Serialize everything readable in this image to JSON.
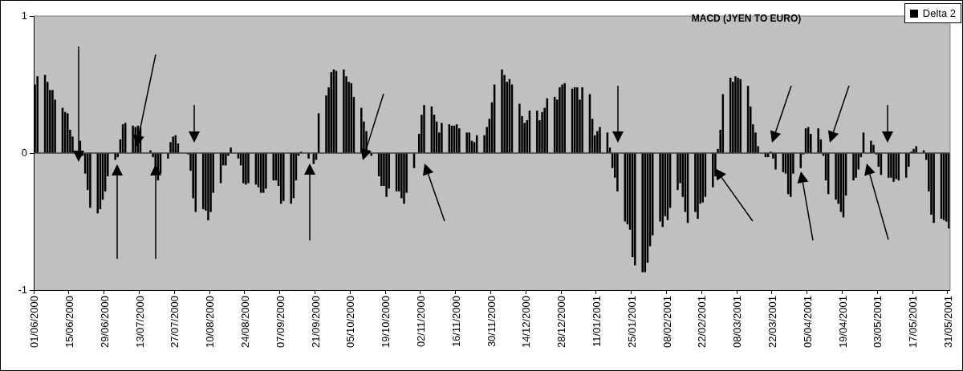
{
  "chart_data": {
    "type": "bar",
    "title": "MACD (JYEN TO EURO)",
    "categories": [
      "01/06/2000",
      null,
      null,
      null,
      null,
      null,
      null,
      null,
      null,
      null,
      null,
      null,
      null,
      null,
      "15/06/2000",
      null,
      null,
      null,
      null,
      null,
      null,
      null,
      null,
      null,
      null,
      null,
      null,
      null,
      "29/06/2000",
      null,
      null,
      null,
      null,
      null,
      null,
      null,
      null,
      null,
      null,
      null,
      null,
      null,
      "13/07/2000",
      null,
      null,
      null,
      null,
      null,
      null,
      null,
      null,
      null,
      null,
      null,
      null,
      null,
      "27/07/2000",
      null,
      null,
      null,
      null,
      null,
      null,
      null,
      null,
      null,
      null,
      null,
      null,
      null,
      "10/08/2000",
      null,
      null,
      null,
      null,
      null,
      null,
      null,
      null,
      null,
      null,
      null,
      null,
      null,
      "24/08/2000",
      null,
      null,
      null,
      null,
      null,
      null,
      null,
      null,
      null,
      null,
      null,
      null,
      null,
      "07/09/2000",
      null,
      null,
      null,
      null,
      null,
      null,
      null,
      null,
      null,
      null,
      null,
      null,
      null,
      "21/09/2000",
      null,
      null,
      null,
      null,
      null,
      null,
      null,
      null,
      null,
      null,
      null,
      null,
      null,
      "05/10/2000",
      null,
      null,
      null,
      null,
      null,
      null,
      null,
      null,
      null,
      null,
      null,
      null,
      null,
      "19/10/2000",
      null,
      null,
      null,
      null,
      null,
      null,
      null,
      null,
      null,
      null,
      null,
      null,
      null,
      "02/11/2000",
      null,
      null,
      null,
      null,
      null,
      null,
      null,
      null,
      null,
      null,
      null,
      null,
      null,
      "16/11/2000",
      null,
      null,
      null,
      null,
      null,
      null,
      null,
      null,
      null,
      null,
      null,
      null,
      null,
      "30/11/2000",
      null,
      null,
      null,
      null,
      null,
      null,
      null,
      null,
      null,
      null,
      null,
      null,
      null,
      "14/12/2000",
      null,
      null,
      null,
      null,
      null,
      null,
      null,
      null,
      null,
      null,
      null,
      null,
      null,
      "28/12/2000",
      null,
      null,
      null,
      null,
      null,
      null,
      null,
      null,
      null,
      null,
      null,
      null,
      null,
      "11/01/2001",
      null,
      null,
      null,
      null,
      null,
      null,
      null,
      null,
      null,
      null,
      null,
      null,
      null,
      "25/01/2001",
      null,
      null,
      null,
      null,
      null,
      null,
      null,
      null,
      null,
      null,
      null,
      null,
      null,
      "08/02/2001",
      null,
      null,
      null,
      null,
      null,
      null,
      null,
      null,
      null,
      null,
      null,
      null,
      null,
      "22/02/2001",
      null,
      null,
      null,
      null,
      null,
      null,
      null,
      null,
      null,
      null,
      null,
      null,
      null,
      "08/03/2001",
      null,
      null,
      null,
      null,
      null,
      null,
      null,
      null,
      null,
      null,
      null,
      null,
      null,
      "22/03/2001",
      null,
      null,
      null,
      null,
      null,
      null,
      null,
      null,
      null,
      null,
      null,
      null,
      null,
      "05/04/2001",
      null,
      null,
      null,
      null,
      null,
      null,
      null,
      null,
      null,
      null,
      null,
      null,
      null,
      "19/04/2001",
      null,
      null,
      null,
      null,
      null,
      null,
      null,
      null,
      null,
      null,
      null,
      null,
      null,
      "03/05/2001",
      null,
      null,
      null,
      null,
      null,
      null,
      null,
      null,
      null,
      null,
      null,
      null,
      null,
      "17/05/2001",
      null,
      null,
      null,
      null,
      null,
      null,
      null,
      null,
      null,
      null,
      null,
      null,
      null,
      "31/05/2001"
    ],
    "series": [
      {
        "name": "Delta 2",
        "color": "#000000",
        "values": [
          0.5,
          0.56,
          null,
          null,
          0.57,
          0.52,
          0.46,
          0.46,
          0.39,
          null,
          null,
          0.33,
          0.3,
          0.29,
          0.17,
          0.12,
          null,
          null,
          0.09,
          -0.02,
          -0.15,
          -0.27,
          -0.4,
          null,
          null,
          -0.44,
          -0.41,
          -0.34,
          -0.28,
          -0.17,
          null,
          null,
          -0.05,
          -0.03,
          0.1,
          0.21,
          0.22,
          null,
          null,
          0.2,
          0.19,
          0.2,
          0.19,
          0.0,
          null,
          null,
          0.02,
          -0.03,
          -0.12,
          -0.2,
          -0.15,
          null,
          null,
          -0.04,
          0.08,
          0.12,
          0.13,
          0.07,
          null,
          null,
          0.0,
          -0.01,
          -0.13,
          -0.33,
          -0.43,
          null,
          null,
          -0.41,
          -0.42,
          -0.49,
          -0.43,
          -0.29,
          null,
          null,
          -0.22,
          -0.09,
          -0.09,
          -0.02,
          0.04,
          null,
          null,
          -0.04,
          -0.09,
          -0.22,
          -0.23,
          -0.22,
          null,
          null,
          -0.23,
          -0.25,
          -0.29,
          -0.29,
          -0.26,
          null,
          null,
          -0.2,
          -0.2,
          -0.24,
          -0.37,
          -0.35,
          null,
          null,
          -0.37,
          -0.33,
          -0.2,
          -0.02,
          0.01,
          null,
          null,
          -0.04,
          0.0,
          -0.08,
          -0.05,
          0.29,
          null,
          null,
          0.42,
          0.48,
          0.59,
          0.61,
          0.6,
          null,
          null,
          0.61,
          0.56,
          0.52,
          0.51,
          0.41,
          null,
          null,
          0.33,
          0.23,
          0.16,
          0.02,
          -0.02,
          null,
          null,
          -0.17,
          -0.24,
          -0.24,
          -0.32,
          -0.26,
          null,
          null,
          -0.28,
          -0.28,
          -0.33,
          -0.37,
          -0.29,
          null,
          null,
          -0.11,
          0.0,
          0.14,
          0.28,
          0.35,
          null,
          null,
          0.34,
          0.28,
          0.23,
          0.15,
          0.22,
          null,
          null,
          0.21,
          0.2,
          0.2,
          0.21,
          0.18,
          null,
          null,
          0.15,
          0.15,
          0.09,
          0.08,
          0.13,
          null,
          null,
          0.13,
          0.19,
          0.25,
          0.37,
          0.5,
          null,
          null,
          0.61,
          0.57,
          0.52,
          0.54,
          0.5,
          null,
          null,
          0.36,
          0.27,
          0.22,
          0.24,
          0.31,
          null,
          null,
          0.31,
          0.24,
          0.3,
          0.33,
          0.4,
          null,
          null,
          0.41,
          0.39,
          0.48,
          0.5,
          0.51,
          null,
          null,
          0.47,
          0.48,
          0.48,
          0.39,
          0.48,
          null,
          null,
          0.43,
          0.25,
          0.13,
          0.16,
          0.19,
          null,
          null,
          0.15,
          0.04,
          -0.11,
          -0.18,
          -0.28,
          null,
          null,
          -0.5,
          -0.52,
          -0.56,
          -0.76,
          -0.82,
          null,
          null,
          -0.87,
          -0.87,
          -0.8,
          -0.68,
          -0.6,
          null,
          null,
          -0.5,
          -0.54,
          -0.46,
          -0.49,
          -0.4,
          null,
          null,
          -0.27,
          -0.22,
          -0.32,
          -0.43,
          -0.51,
          null,
          null,
          -0.43,
          -0.48,
          -0.37,
          -0.36,
          -0.32,
          null,
          null,
          -0.25,
          -0.17,
          0.03,
          0.17,
          0.43,
          null,
          null,
          0.55,
          0.52,
          0.56,
          0.55,
          0.54,
          null,
          null,
          0.49,
          0.34,
          0.21,
          0.15,
          0.05,
          null,
          null,
          -0.03,
          -0.03,
          0.01,
          -0.04,
          -0.12,
          null,
          null,
          -0.14,
          -0.15,
          -0.3,
          -0.32,
          -0.15,
          null,
          null,
          -0.11,
          -0.01,
          0.18,
          0.19,
          0.14,
          null,
          null,
          0.18,
          0.1,
          -0.02,
          -0.2,
          -0.3,
          null,
          null,
          -0.34,
          -0.37,
          -0.43,
          -0.47,
          -0.31,
          null,
          null,
          -0.2,
          -0.18,
          -0.12,
          -0.03,
          0.15,
          null,
          null,
          0.09,
          0.06,
          -0.01,
          -0.1,
          -0.16,
          null,
          null,
          -0.18,
          -0.18,
          -0.21,
          -0.19,
          -0.2,
          null,
          null,
          -0.18,
          -0.1,
          0.01,
          0.03,
          0.05,
          null,
          null,
          0.02,
          -0.05,
          -0.28,
          -0.45,
          -0.51,
          null,
          null,
          -0.48,
          -0.49,
          -0.5,
          -0.55
        ]
      }
    ],
    "ylim": [
      -1,
      1
    ],
    "yticks": [
      -1,
      0,
      1
    ],
    "ref_lines": [
      {
        "axis": "y",
        "value": 0,
        "color": "#000000"
      }
    ],
    "legend": "top right"
  }
}
